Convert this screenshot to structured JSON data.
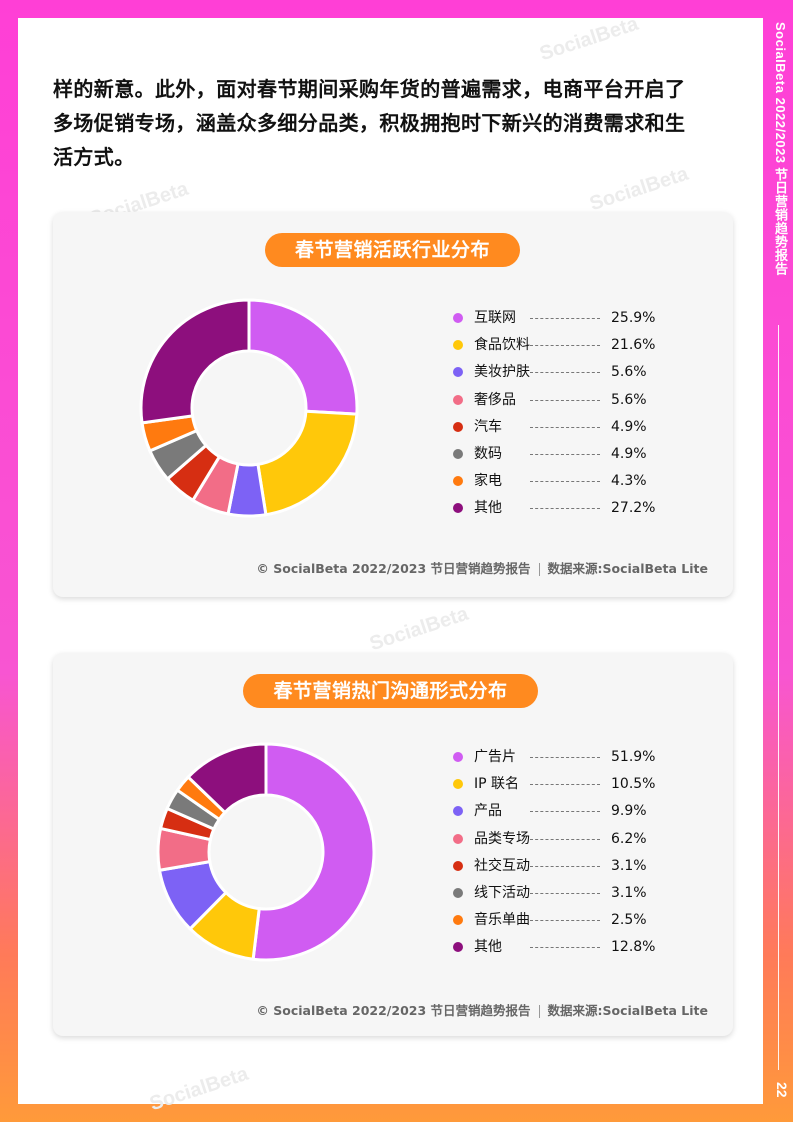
{
  "side": {
    "title": "SocialBeta 2022/2023 节日营销趋势报告",
    "page_number": "22"
  },
  "intro": {
    "lines": [
      "样的新意。此外，面对春节期间采购年货的普遍需求，电商平台开启了",
      "多场促销专场，涵盖众多细分品类，积极拥抱时下新兴的消费需求和生",
      "活方式。"
    ]
  },
  "watermark_text": "SocialBeta",
  "colors": {
    "accent": "#ff8a1f",
    "series": [
      "#d05cf2",
      "#ffc80a",
      "#7d62f5",
      "#f26d87",
      "#d62e12",
      "#7a7a7a",
      "#ff7a0f",
      "#8d0f7d"
    ]
  },
  "footnote": {
    "copyright": "© SocialBeta 2022/2023 节日营销趋势报告",
    "source": "数据来源:SocialBeta Lite"
  },
  "chart_data": [
    {
      "type": "pie",
      "title": "春节营销活跃行业分布",
      "categories": [
        "互联网",
        "食品饮料",
        "美妆护肤",
        "奢侈品",
        "汽车",
        "数码",
        "家电",
        "其他"
      ],
      "values": [
        25.9,
        21.6,
        5.6,
        5.6,
        4.9,
        4.9,
        4.3,
        27.2
      ],
      "labels": [
        "25.9%",
        "21.6%",
        "5.6%",
        "5.6%",
        "4.9%",
        "4.9%",
        "4.3%",
        "27.2%"
      ],
      "legend": "right"
    },
    {
      "type": "pie",
      "title": "春节营销热门沟通形式分布",
      "categories": [
        "广告片",
        "IP 联名",
        "产品",
        "品类专场",
        "社交互动",
        "线下活动",
        "音乐单曲",
        "其他"
      ],
      "values": [
        51.9,
        10.5,
        9.9,
        6.2,
        3.1,
        3.1,
        2.5,
        12.8
      ],
      "labels": [
        "51.9%",
        "10.5%",
        "9.9%",
        "6.2%",
        "3.1%",
        "3.1%",
        "2.5%",
        "12.8%"
      ],
      "legend": "right"
    }
  ]
}
